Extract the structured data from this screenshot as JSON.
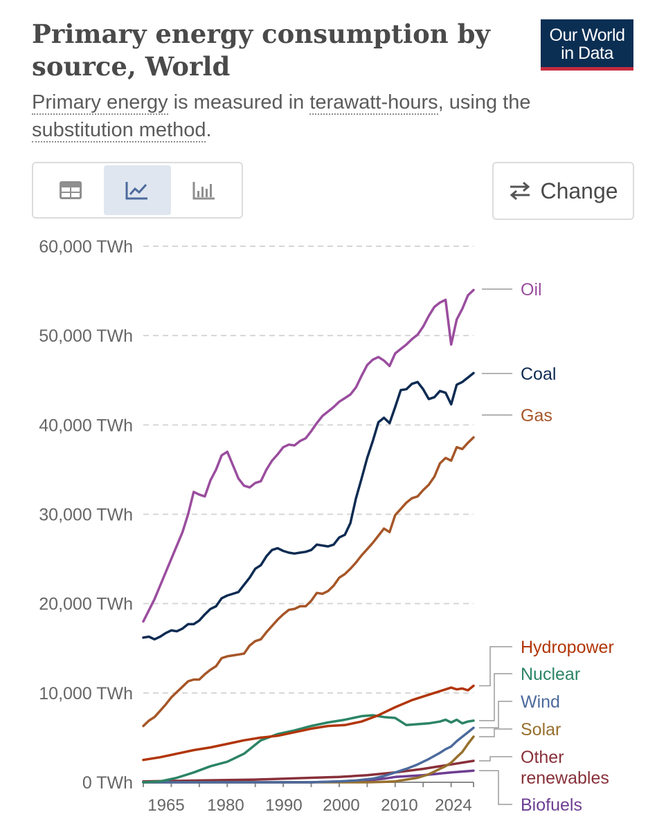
{
  "header": {
    "title": "Primary energy consumption by source, World",
    "logo_line1": "Our World",
    "logo_line2": "in Data",
    "subtitle_link1": "Primary energy",
    "subtitle_text1": " is measured in ",
    "subtitle_link2": "terawatt-hours",
    "subtitle_text2": ", using the ",
    "subtitle_link3": "substitution method",
    "subtitle_text3": "."
  },
  "toolbar": {
    "icons": [
      "table-icon",
      "line-chart-icon",
      "bar-chart-icon"
    ],
    "active": "line-chart-icon",
    "change_label": "Change",
    "change_icon": "swap-arrows-icon"
  },
  "chart_data": {
    "type": "line",
    "title": "Primary energy consumption by source, World",
    "ylim": [
      0,
      60000
    ],
    "xlim": [
      1965,
      2024
    ],
    "y_ticks": [
      0,
      10000,
      20000,
      30000,
      40000,
      50000,
      60000
    ],
    "y_tick_labels": [
      "0 TWh",
      "10,000 TWh",
      "20,000 TWh",
      "30,000 TWh",
      "40,000 TWh",
      "50,000 TWh",
      "60,000 TWh"
    ],
    "x_tick_labels": [
      "1965",
      "1980",
      "1990",
      "2000",
      "2010",
      "2024"
    ],
    "grid": "horizontal dashed",
    "legend_placement": "right (inline labels)",
    "series": [
      {
        "name": "Oil",
        "color": "#9a4d9e",
        "points": [
          [
            1965,
            18000
          ],
          [
            1967,
            20500
          ],
          [
            1969,
            23500
          ],
          [
            1971,
            26500
          ],
          [
            1972,
            28000
          ],
          [
            1973,
            30000
          ],
          [
            1974,
            32500
          ],
          [
            1975,
            32200
          ],
          [
            1976,
            32000
          ],
          [
            1977,
            33800
          ],
          [
            1978,
            35000
          ],
          [
            1979,
            36600
          ],
          [
            1980,
            37000
          ],
          [
            1981,
            35500
          ],
          [
            1982,
            34000
          ],
          [
            1983,
            33200
          ],
          [
            1984,
            33000
          ],
          [
            1985,
            33500
          ],
          [
            1986,
            33700
          ],
          [
            1987,
            35000
          ],
          [
            1988,
            36000
          ],
          [
            1989,
            36700
          ],
          [
            1990,
            37500
          ],
          [
            1991,
            37800
          ],
          [
            1992,
            37700
          ],
          [
            1993,
            38200
          ],
          [
            1994,
            38500
          ],
          [
            1995,
            39300
          ],
          [
            1996,
            40200
          ],
          [
            1997,
            41000
          ],
          [
            1998,
            41500
          ],
          [
            1999,
            42000
          ],
          [
            2000,
            42600
          ],
          [
            2001,
            43000
          ],
          [
            2002,
            43400
          ],
          [
            2003,
            44200
          ],
          [
            2004,
            45500
          ],
          [
            2005,
            46700
          ],
          [
            2006,
            47300
          ],
          [
            2007,
            47600
          ],
          [
            2008,
            47200
          ],
          [
            2009,
            46600
          ],
          [
            2010,
            48000
          ],
          [
            2011,
            48500
          ],
          [
            2012,
            49000
          ],
          [
            2013,
            49600
          ],
          [
            2014,
            50100
          ],
          [
            2015,
            51000
          ],
          [
            2016,
            52200
          ],
          [
            2017,
            53200
          ],
          [
            2018,
            53700
          ],
          [
            2019,
            54000
          ],
          [
            2020,
            49000
          ],
          [
            2021,
            51800
          ],
          [
            2022,
            53000
          ],
          [
            2023,
            54500
          ],
          [
            2024,
            55100
          ]
        ]
      },
      {
        "name": "Coal",
        "color": "#0d2b52",
        "points": [
          [
            1965,
            16200
          ],
          [
            1966,
            16300
          ],
          [
            1967,
            16000
          ],
          [
            1968,
            16300
          ],
          [
            1969,
            16700
          ],
          [
            1970,
            17000
          ],
          [
            1971,
            16900
          ],
          [
            1972,
            17200
          ],
          [
            1973,
            17700
          ],
          [
            1974,
            17700
          ],
          [
            1975,
            18100
          ],
          [
            1976,
            18800
          ],
          [
            1977,
            19400
          ],
          [
            1978,
            19700
          ],
          [
            1979,
            20600
          ],
          [
            1980,
            20900
          ],
          [
            1981,
            21100
          ],
          [
            1982,
            21300
          ],
          [
            1983,
            22100
          ],
          [
            1984,
            22900
          ],
          [
            1985,
            23900
          ],
          [
            1986,
            24300
          ],
          [
            1987,
            25300
          ],
          [
            1988,
            26000
          ],
          [
            1989,
            26200
          ],
          [
            1990,
            25900
          ],
          [
            1991,
            25700
          ],
          [
            1992,
            25600
          ],
          [
            1993,
            25700
          ],
          [
            1994,
            25800
          ],
          [
            1995,
            26000
          ],
          [
            1996,
            26600
          ],
          [
            1997,
            26500
          ],
          [
            1998,
            26400
          ],
          [
            1999,
            26600
          ],
          [
            2000,
            27400
          ],
          [
            2001,
            27700
          ],
          [
            2002,
            29000
          ],
          [
            2003,
            31800
          ],
          [
            2004,
            34000
          ],
          [
            2005,
            36300
          ],
          [
            2006,
            38200
          ],
          [
            2007,
            40300
          ],
          [
            2008,
            40800
          ],
          [
            2009,
            40200
          ],
          [
            2010,
            42000
          ],
          [
            2011,
            43900
          ],
          [
            2012,
            44000
          ],
          [
            2013,
            44600
          ],
          [
            2014,
            44800
          ],
          [
            2015,
            44000
          ],
          [
            2016,
            42900
          ],
          [
            2017,
            43100
          ],
          [
            2018,
            43800
          ],
          [
            2019,
            43600
          ],
          [
            2020,
            42300
          ],
          [
            2021,
            44500
          ],
          [
            2022,
            44800
          ],
          [
            2023,
            45300
          ],
          [
            2024,
            45800
          ]
        ]
      },
      {
        "name": "Gas",
        "color": "#a65628",
        "points": [
          [
            1965,
            6300
          ],
          [
            1966,
            6900
          ],
          [
            1967,
            7300
          ],
          [
            1968,
            8000
          ],
          [
            1969,
            8700
          ],
          [
            1970,
            9500
          ],
          [
            1971,
            10100
          ],
          [
            1972,
            10700
          ],
          [
            1973,
            11300
          ],
          [
            1974,
            11500
          ],
          [
            1975,
            11500
          ],
          [
            1976,
            12100
          ],
          [
            1977,
            12600
          ],
          [
            1978,
            13000
          ],
          [
            1979,
            13900
          ],
          [
            1980,
            14100
          ],
          [
            1981,
            14200
          ],
          [
            1982,
            14300
          ],
          [
            1983,
            14400
          ],
          [
            1984,
            15300
          ],
          [
            1985,
            15800
          ],
          [
            1986,
            16000
          ],
          [
            1987,
            16800
          ],
          [
            1988,
            17500
          ],
          [
            1989,
            18200
          ],
          [
            1990,
            18800
          ],
          [
            1991,
            19300
          ],
          [
            1992,
            19400
          ],
          [
            1993,
            19700
          ],
          [
            1994,
            19700
          ],
          [
            1995,
            20300
          ],
          [
            1996,
            21200
          ],
          [
            1997,
            21100
          ],
          [
            1998,
            21400
          ],
          [
            1999,
            22000
          ],
          [
            2000,
            22900
          ],
          [
            2001,
            23300
          ],
          [
            2002,
            23900
          ],
          [
            2003,
            24600
          ],
          [
            2004,
            25400
          ],
          [
            2005,
            26100
          ],
          [
            2006,
            26800
          ],
          [
            2007,
            27600
          ],
          [
            2008,
            28400
          ],
          [
            2009,
            28000
          ],
          [
            2010,
            29900
          ],
          [
            2011,
            30600
          ],
          [
            2012,
            31300
          ],
          [
            2013,
            31800
          ],
          [
            2014,
            32000
          ],
          [
            2015,
            32700
          ],
          [
            2016,
            33300
          ],
          [
            2017,
            34200
          ],
          [
            2018,
            35700
          ],
          [
            2019,
            36300
          ],
          [
            2020,
            36000
          ],
          [
            2021,
            37500
          ],
          [
            2022,
            37300
          ],
          [
            2023,
            38000
          ],
          [
            2024,
            38600
          ]
        ]
      },
      {
        "name": "Hydropower",
        "color": "#b13507",
        "points": [
          [
            1965,
            2500
          ],
          [
            1968,
            2800
          ],
          [
            1971,
            3200
          ],
          [
            1974,
            3600
          ],
          [
            1977,
            3900
          ],
          [
            1980,
            4300
          ],
          [
            1983,
            4700
          ],
          [
            1986,
            5000
          ],
          [
            1989,
            5200
          ],
          [
            1992,
            5600
          ],
          [
            1995,
            6000
          ],
          [
            1998,
            6300
          ],
          [
            2001,
            6400
          ],
          [
            2004,
            6800
          ],
          [
            2007,
            7500
          ],
          [
            2010,
            8400
          ],
          [
            2013,
            9200
          ],
          [
            2016,
            9800
          ],
          [
            2019,
            10400
          ],
          [
            2020,
            10600
          ],
          [
            2021,
            10400
          ],
          [
            2022,
            10500
          ],
          [
            2023,
            10300
          ],
          [
            2024,
            10800
          ]
        ]
      },
      {
        "name": "Nuclear",
        "color": "#2c8465",
        "points": [
          [
            1965,
            0
          ],
          [
            1968,
            100
          ],
          [
            1971,
            500
          ],
          [
            1974,
            1100
          ],
          [
            1977,
            1800
          ],
          [
            1980,
            2300
          ],
          [
            1983,
            3200
          ],
          [
            1986,
            4700
          ],
          [
            1989,
            5400
          ],
          [
            1992,
            5800
          ],
          [
            1995,
            6300
          ],
          [
            1998,
            6700
          ],
          [
            2001,
            7000
          ],
          [
            2004,
            7400
          ],
          [
            2006,
            7500
          ],
          [
            2008,
            7300
          ],
          [
            2010,
            7200
          ],
          [
            2012,
            6400
          ],
          [
            2014,
            6500
          ],
          [
            2016,
            6600
          ],
          [
            2018,
            6800
          ],
          [
            2019,
            7000
          ],
          [
            2020,
            6700
          ],
          [
            2021,
            7000
          ],
          [
            2022,
            6600
          ],
          [
            2023,
            6800
          ],
          [
            2024,
            6900
          ]
        ]
      },
      {
        "name": "Wind",
        "color": "#4c6a9c",
        "points": [
          [
            1965,
            0
          ],
          [
            1995,
            0
          ],
          [
            2000,
            100
          ],
          [
            2003,
            200
          ],
          [
            2006,
            400
          ],
          [
            2008,
            700
          ],
          [
            2010,
            1100
          ],
          [
            2012,
            1500
          ],
          [
            2014,
            2000
          ],
          [
            2016,
            2600
          ],
          [
            2018,
            3300
          ],
          [
            2019,
            3700
          ],
          [
            2020,
            4000
          ],
          [
            2021,
            4600
          ],
          [
            2022,
            5100
          ],
          [
            2023,
            5600
          ],
          [
            2024,
            6100
          ]
        ]
      },
      {
        "name": "Solar",
        "color": "#97702d",
        "points": [
          [
            1965,
            0
          ],
          [
            2005,
            0
          ],
          [
            2008,
            50
          ],
          [
            2010,
            100
          ],
          [
            2012,
            300
          ],
          [
            2014,
            500
          ],
          [
            2016,
            900
          ],
          [
            2018,
            1500
          ],
          [
            2019,
            1800
          ],
          [
            2020,
            2200
          ],
          [
            2021,
            2800
          ],
          [
            2022,
            3400
          ],
          [
            2023,
            4300
          ],
          [
            2024,
            5100
          ]
        ]
      },
      {
        "name": "Other renewables",
        "color": "#883039",
        "points": [
          [
            1965,
            100
          ],
          [
            1975,
            200
          ],
          [
            1985,
            300
          ],
          [
            1995,
            500
          ],
          [
            2000,
            600
          ],
          [
            2005,
            800
          ],
          [
            2010,
            1100
          ],
          [
            2015,
            1500
          ],
          [
            2020,
            2000
          ],
          [
            2024,
            2400
          ]
        ]
      },
      {
        "name": "Biofuels",
        "color": "#6d3e91",
        "points": [
          [
            1965,
            0
          ],
          [
            1995,
            0
          ],
          [
            2000,
            100
          ],
          [
            2005,
            200
          ],
          [
            2008,
            400
          ],
          [
            2010,
            600
          ],
          [
            2015,
            800
          ],
          [
            2020,
            1100
          ],
          [
            2024,
            1300
          ]
        ]
      }
    ]
  }
}
